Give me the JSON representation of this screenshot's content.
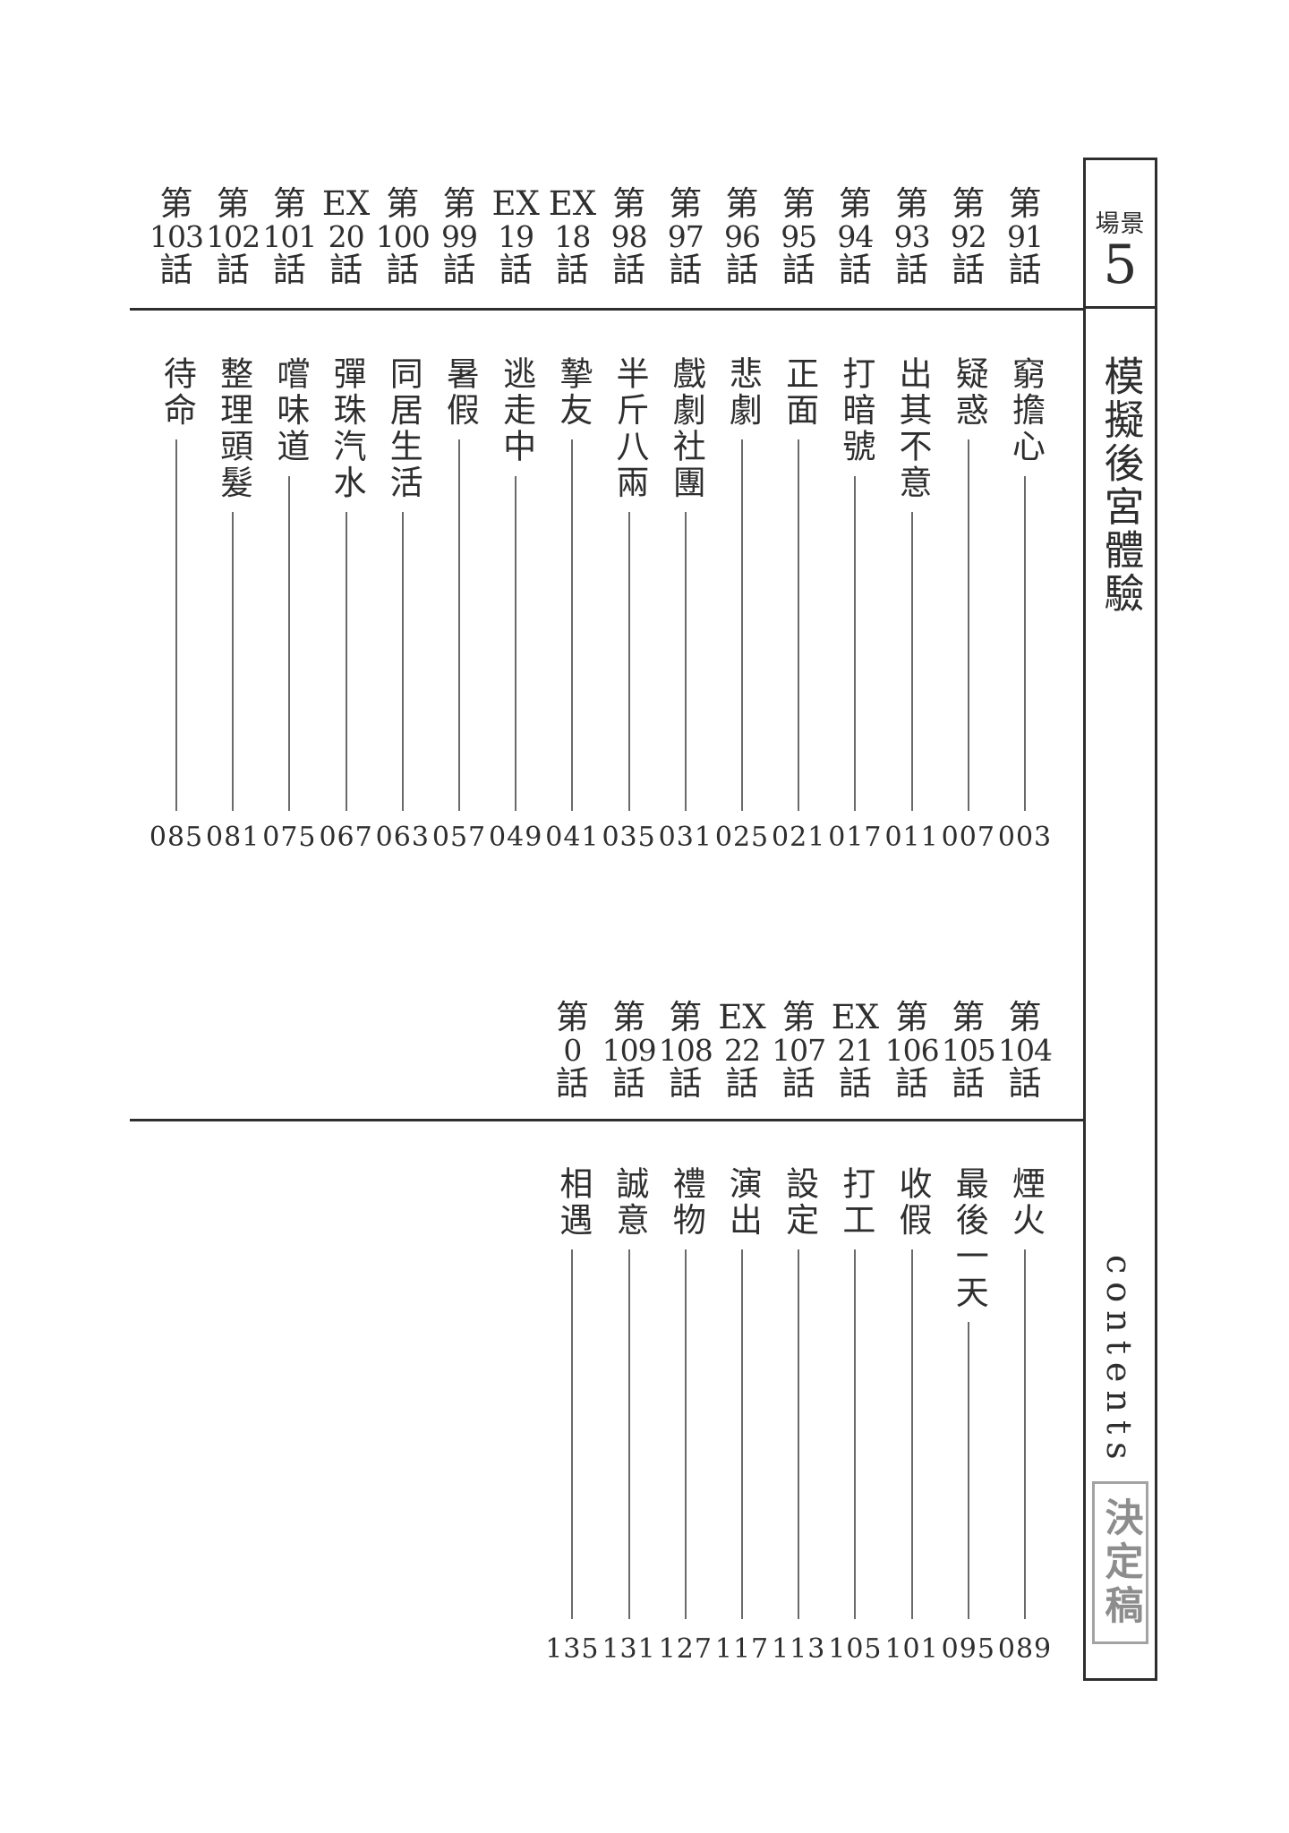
{
  "sidebar": {
    "scene_label": "場景",
    "scene_number": "5",
    "series_title": "模擬後宮體驗",
    "contents_label": "contents",
    "stamp_label": "決定稿"
  },
  "colors": {
    "ink": "#2e2e2e",
    "leader_line": "#6a6a6a",
    "stamp_text": "#8d8d8d",
    "stamp_border": "#a3a3a3",
    "background": "#ffffff"
  },
  "toc": {
    "sections": [
      {
        "id": "upper",
        "entries": [
          {
            "prefix": "第",
            "number": "91",
            "suffix": "話",
            "title": "窮擔心",
            "page": "003"
          },
          {
            "prefix": "第",
            "number": "92",
            "suffix": "話",
            "title": "疑惑",
            "page": "007"
          },
          {
            "prefix": "第",
            "number": "93",
            "suffix": "話",
            "title": "出其不意",
            "page": "011"
          },
          {
            "prefix": "第",
            "number": "94",
            "suffix": "話",
            "title": "打暗號",
            "page": "017"
          },
          {
            "prefix": "第",
            "number": "95",
            "suffix": "話",
            "title": "正面",
            "page": "021"
          },
          {
            "prefix": "第",
            "number": "96",
            "suffix": "話",
            "title": "悲劇",
            "page": "025"
          },
          {
            "prefix": "第",
            "number": "97",
            "suffix": "話",
            "title": "戲劇社團",
            "page": "031"
          },
          {
            "prefix": "第",
            "number": "98",
            "suffix": "話",
            "title": "半斤八兩",
            "page": "035"
          },
          {
            "prefix": "EX",
            "number": "18",
            "suffix": "話",
            "title": "摯友",
            "page": "041"
          },
          {
            "prefix": "EX",
            "number": "19",
            "suffix": "話",
            "title": "逃走中",
            "page": "049"
          },
          {
            "prefix": "第",
            "number": "99",
            "suffix": "話",
            "title": "暑假",
            "page": "057"
          },
          {
            "prefix": "第",
            "number": "100",
            "suffix": "話",
            "title": "同居生活",
            "page": "063"
          },
          {
            "prefix": "EX",
            "number": "20",
            "suffix": "話",
            "title": "彈珠汽水",
            "page": "067"
          },
          {
            "prefix": "第",
            "number": "101",
            "suffix": "話",
            "title": "嚐味道",
            "page": "075"
          },
          {
            "prefix": "第",
            "number": "102",
            "suffix": "話",
            "title": "整理頭髮",
            "page": "081"
          },
          {
            "prefix": "第",
            "number": "103",
            "suffix": "話",
            "title": "待命",
            "page": "085"
          }
        ]
      },
      {
        "id": "lower",
        "entries": [
          {
            "prefix": "第",
            "number": "104",
            "suffix": "話",
            "title": "煙火",
            "page": "089"
          },
          {
            "prefix": "第",
            "number": "105",
            "suffix": "話",
            "title": "最後一天",
            "page": "095"
          },
          {
            "prefix": "第",
            "number": "106",
            "suffix": "話",
            "title": "收假",
            "page": "101"
          },
          {
            "prefix": "EX",
            "number": "21",
            "suffix": "話",
            "title": "打工",
            "page": "105"
          },
          {
            "prefix": "第",
            "number": "107",
            "suffix": "話",
            "title": "設定",
            "page": "113"
          },
          {
            "prefix": "EX",
            "number": "22",
            "suffix": "話",
            "title": "演出",
            "page": "117"
          },
          {
            "prefix": "第",
            "number": "108",
            "suffix": "話",
            "title": "禮物",
            "page": "127"
          },
          {
            "prefix": "第",
            "number": "109",
            "suffix": "話",
            "title": "誠意",
            "page": "131"
          },
          {
            "prefix": "第",
            "number": "0",
            "suffix": "話",
            "title": "相遇",
            "page": "135"
          }
        ]
      }
    ]
  }
}
